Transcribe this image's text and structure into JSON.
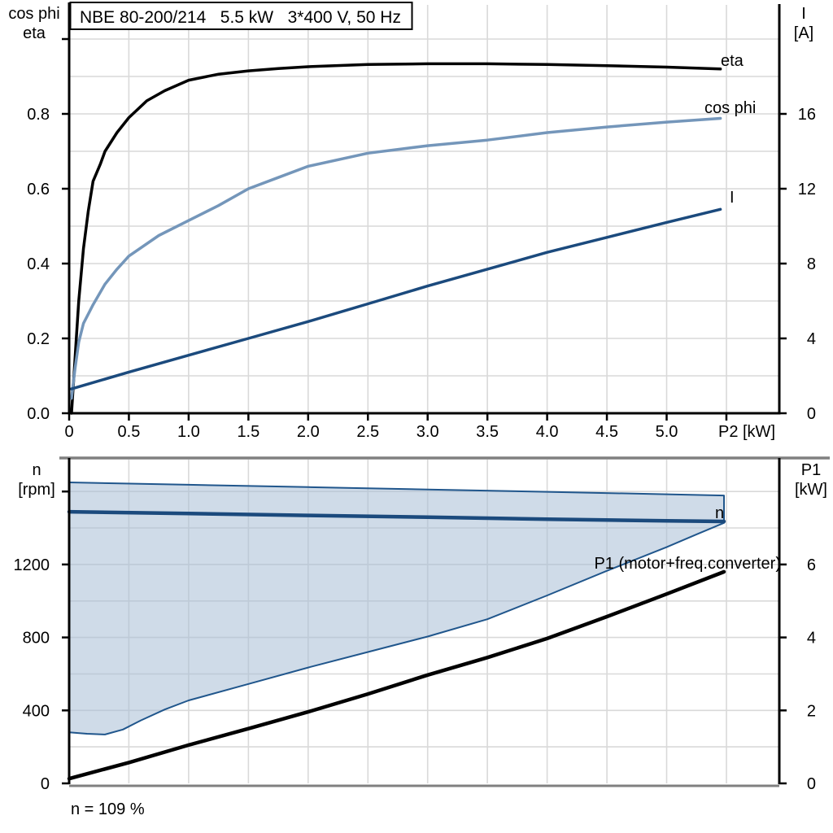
{
  "colors": {
    "black": "#000000",
    "navy": "#1b4a7d",
    "steel_blue": "#7496ba",
    "envelope_fill": "#a8bdd5",
    "envelope_edge": "#20568c",
    "grid": "#d9d9d9",
    "axis": "#000000",
    "panel_border": "#808080"
  },
  "chart_data": [
    {
      "type": "line",
      "title": "NBE 80-200/214   5.5 kW   3*400 V, 50 Hz",
      "x_axis": {
        "title": "P2 [kW]",
        "range": [
          0,
          5.94
        ],
        "grid_step": 0.5,
        "grid_max": 5.5,
        "ticks": [
          {
            "v": 0.0,
            "label": "0"
          },
          {
            "v": 0.5,
            "label": "0.5"
          },
          {
            "v": 1.0,
            "label": "1.0"
          },
          {
            "v": 1.5,
            "label": "1.5"
          },
          {
            "v": 2.0,
            "label": "2.0"
          },
          {
            "v": 2.5,
            "label": "2.5"
          },
          {
            "v": 3.0,
            "label": "3.0"
          },
          {
            "v": 3.5,
            "label": "3.5"
          },
          {
            "v": 4.0,
            "label": "4.0"
          },
          {
            "v": 4.5,
            "label": "4.5"
          },
          {
            "v": 5.0,
            "label": "5.0"
          },
          {
            "v": 5.5,
            "label": ""
          }
        ]
      },
      "left_axis": {
        "title": [
          "cos phi",
          "eta"
        ],
        "range": [
          0,
          1.085
        ],
        "grid_step": 0.1,
        "grid_max": 1.0,
        "ticks": [
          {
            "v": 0.0,
            "label": "0.0"
          },
          {
            "v": 0.2,
            "label": "0.2"
          },
          {
            "v": 0.4,
            "label": "0.4"
          },
          {
            "v": 0.6,
            "label": "0.6"
          },
          {
            "v": 0.8,
            "label": "0.8"
          },
          {
            "v": 1.0,
            "label": ""
          }
        ]
      },
      "right_axis": {
        "title": [
          "I",
          "[A]"
        ],
        "range": [
          0,
          21.7
        ],
        "ticks": [
          {
            "v": 0,
            "label": "0"
          },
          {
            "v": 4,
            "label": "4"
          },
          {
            "v": 8,
            "label": "8"
          },
          {
            "v": 12,
            "label": "12"
          },
          {
            "v": 16,
            "label": "16"
          }
        ]
      },
      "series": [
        {
          "name": "eta",
          "axis": "left",
          "color_key": "black",
          "width": 3.5,
          "points": [
            [
              0.02,
              0.0
            ],
            [
              0.04,
              0.1
            ],
            [
              0.06,
              0.2
            ],
            [
              0.08,
              0.3
            ],
            [
              0.12,
              0.44
            ],
            [
              0.16,
              0.54
            ],
            [
              0.2,
              0.62
            ],
            [
              0.26,
              0.665
            ],
            [
              0.3,
              0.7
            ],
            [
              0.4,
              0.75
            ],
            [
              0.5,
              0.79
            ],
            [
              0.65,
              0.835
            ],
            [
              0.8,
              0.862
            ],
            [
              1.0,
              0.89
            ],
            [
              1.25,
              0.906
            ],
            [
              1.5,
              0.915
            ],
            [
              1.75,
              0.921
            ],
            [
              2.0,
              0.926
            ],
            [
              2.5,
              0.932
            ],
            [
              3.0,
              0.934
            ],
            [
              3.5,
              0.934
            ],
            [
              4.0,
              0.932
            ],
            [
              4.5,
              0.929
            ],
            [
              5.0,
              0.925
            ],
            [
              5.45,
              0.92
            ]
          ]
        },
        {
          "name": "cos phi",
          "axis": "left",
          "color_key": "steel_blue",
          "width": 3.5,
          "points": [
            [
              0.02,
              0.04
            ],
            [
              0.05,
              0.12
            ],
            [
              0.08,
              0.19
            ],
            [
              0.12,
              0.24
            ],
            [
              0.2,
              0.29
            ],
            [
              0.3,
              0.345
            ],
            [
              0.4,
              0.385
            ],
            [
              0.5,
              0.42
            ],
            [
              0.75,
              0.475
            ],
            [
              1.0,
              0.515
            ],
            [
              1.25,
              0.555
            ],
            [
              1.5,
              0.6
            ],
            [
              1.75,
              0.63
            ],
            [
              2.0,
              0.66
            ],
            [
              2.5,
              0.695
            ],
            [
              3.0,
              0.715
            ],
            [
              3.5,
              0.73
            ],
            [
              4.0,
              0.75
            ],
            [
              4.5,
              0.765
            ],
            [
              5.0,
              0.778
            ],
            [
              5.45,
              0.788
            ]
          ]
        },
        {
          "name": "I",
          "axis": "right",
          "color_key": "navy",
          "width": 3.5,
          "points": [
            [
              0.02,
              1.3
            ],
            [
              0.5,
              2.2
            ],
            [
              1.0,
              3.1
            ],
            [
              1.5,
              4.0
            ],
            [
              2.0,
              4.9
            ],
            [
              2.5,
              5.85
            ],
            [
              3.0,
              6.8
            ],
            [
              3.5,
              7.7
            ],
            [
              4.0,
              8.6
            ],
            [
              4.5,
              9.4
            ],
            [
              5.0,
              10.2
            ],
            [
              5.45,
              10.9
            ]
          ]
        }
      ]
    },
    {
      "type": "line",
      "x_axis": {
        "title": "",
        "range": [
          0,
          5.94
        ],
        "grid_step": 0.5,
        "grid_max": 5.5,
        "ticks": []
      },
      "left_axis": {
        "title": [
          "n",
          "[rpm]"
        ],
        "range": [
          0,
          1784
        ],
        "grid_step": 200,
        "grid_max": 1600,
        "ticks": [
          {
            "v": 0,
            "label": "0"
          },
          {
            "v": 400,
            "label": "400"
          },
          {
            "v": 800,
            "label": "800"
          },
          {
            "v": 1200,
            "label": "1200"
          },
          {
            "v": 1600,
            "label": ""
          }
        ]
      },
      "right_axis": {
        "title": [
          "P1",
          "[kW]"
        ],
        "range": [
          0,
          8.92
        ],
        "ticks": [
          {
            "v": 0,
            "label": "0"
          },
          {
            "v": 2,
            "label": "2"
          },
          {
            "v": 4,
            "label": "4"
          },
          {
            "v": 6,
            "label": "6"
          }
        ]
      },
      "note": "n = 109 %",
      "series": [
        {
          "name": "speed range envelope",
          "band": true,
          "axis": "left",
          "color_key": "envelope_edge",
          "width": 2,
          "upper": [
            [
              0,
              1650
            ],
            [
              1.0,
              1637
            ],
            [
              2.0,
              1624
            ],
            [
              3.0,
              1611
            ],
            [
              4.0,
              1598
            ],
            [
              5.0,
              1585
            ],
            [
              5.48,
              1578
            ]
          ],
          "lower": [
            [
              0,
              280
            ],
            [
              0.15,
              272
            ],
            [
              0.3,
              268
            ],
            [
              0.45,
              295
            ],
            [
              0.6,
              345
            ],
            [
              0.8,
              405
            ],
            [
              1.0,
              455
            ],
            [
              1.5,
              545
            ],
            [
              2.0,
              635
            ],
            [
              2.5,
              720
            ],
            [
              3.0,
              805
            ],
            [
              3.5,
              900
            ],
            [
              4.0,
              1030
            ],
            [
              4.5,
              1165
            ],
            [
              5.0,
              1295
            ],
            [
              5.25,
              1365
            ],
            [
              5.48,
              1428
            ]
          ]
        },
        {
          "name": "n",
          "axis": "left",
          "color_key": "navy",
          "width": 4.5,
          "points": [
            [
              0,
              1489
            ],
            [
              1.0,
              1479
            ],
            [
              2.0,
              1469
            ],
            [
              3.0,
              1459
            ],
            [
              4.0,
              1448
            ],
            [
              5.0,
              1439
            ],
            [
              5.48,
              1436
            ]
          ]
        },
        {
          "name": "P1",
          "label": "P1 (motor+freq.converter)",
          "axis": "right",
          "color_key": "black",
          "width": 4.5,
          "points": [
            [
              0,
              0.13
            ],
            [
              0.5,
              0.57
            ],
            [
              1.0,
              1.05
            ],
            [
              1.5,
              1.5
            ],
            [
              2.0,
              1.96
            ],
            [
              2.5,
              2.45
            ],
            [
              3.0,
              2.97
            ],
            [
              3.5,
              3.45
            ],
            [
              4.0,
              3.97
            ],
            [
              4.5,
              4.57
            ],
            [
              5.0,
              5.19
            ],
            [
              5.48,
              5.8
            ]
          ]
        }
      ]
    }
  ]
}
